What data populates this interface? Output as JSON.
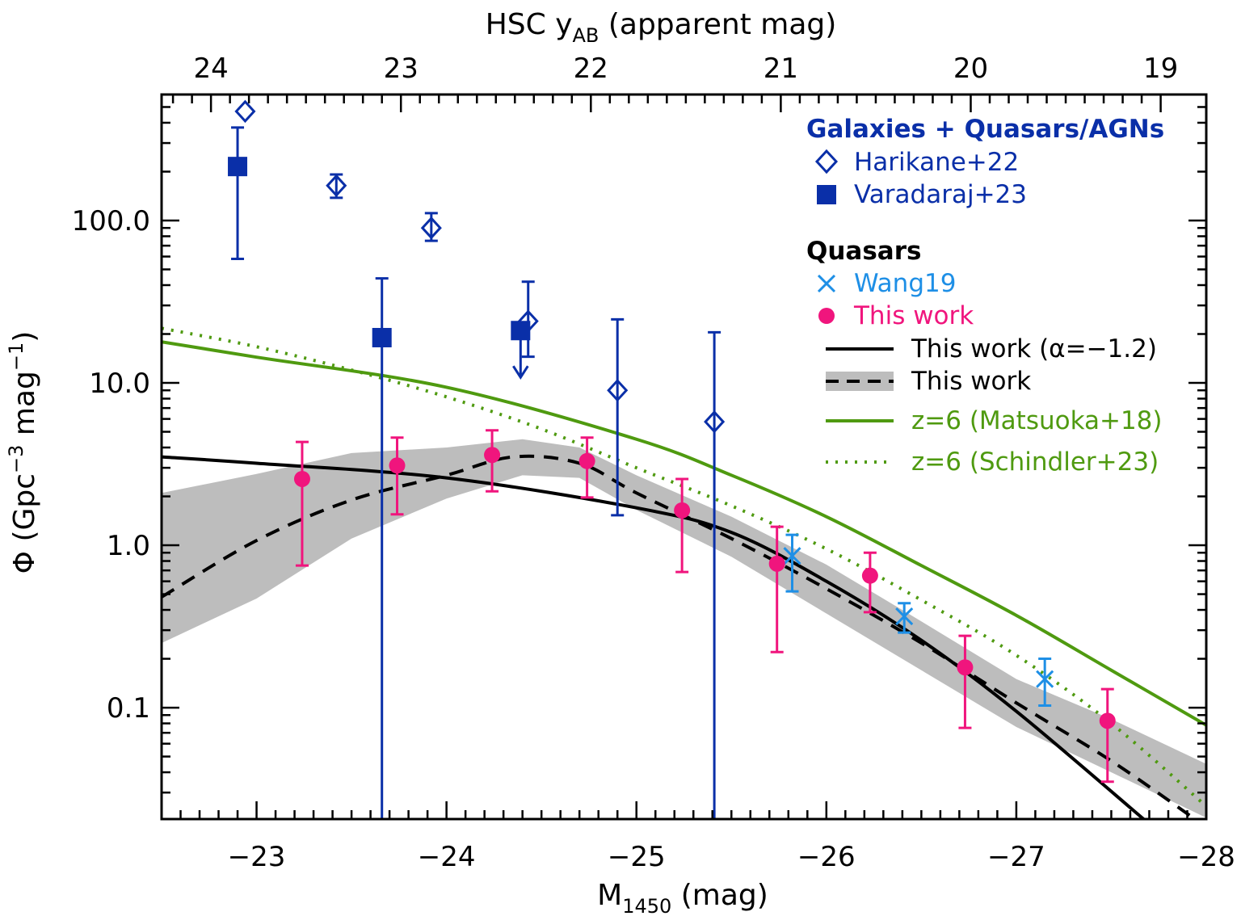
{
  "chart_data": {
    "type": "scatter",
    "xlabel": {
      "main": "M",
      "sub": "1450",
      "rest": " (mag)"
    },
    "ylabel": {
      "main": "Φ (Gpc",
      "sup1": "−3",
      "mid": " mag",
      "sup2": "−1",
      "end": ")"
    },
    "top_xlabel": {
      "main": "HSC y",
      "sub": "AB",
      "rest": " (apparent mag)"
    },
    "xlim": [
      -22.5,
      -28
    ],
    "ylim": [
      0.0206,
      597
    ],
    "yscale": "log",
    "top_axis_offset": 46.76,
    "x_ticks": [
      "−23",
      "−24",
      "−25",
      "−26",
      "−27",
      "−28"
    ],
    "x_tick_values": [
      -23,
      -24,
      -25,
      -26,
      -27,
      -28
    ],
    "top_ticks": [
      "24",
      "23",
      "22",
      "21",
      "20",
      "19"
    ],
    "top_tick_values": [
      24,
      23,
      22,
      21,
      20,
      19
    ],
    "y_ticks": [
      "0.1",
      "1.0",
      "10.0",
      "100.0"
    ],
    "y_tick_values": [
      0.1,
      1,
      10,
      100
    ],
    "legend": {
      "placement": "top-right",
      "group1": "Galaxies + Quasars/AGNs",
      "group2": "Quasars",
      "harikane": "Harikane+22",
      "varadaraj": "Varadaraj+23",
      "wang": "Wang19",
      "thiswork": "This work",
      "fit_alpha": "This work (α=−1.2)",
      "fit_dpl": "This work",
      "matsuoka": "z=6 (Matsuoka+18)",
      "schindler": "z=6 (Schindler+23)"
    },
    "colors": {
      "galaxies": "#0a2fa8",
      "wang": "#1e8fe6",
      "thiswork": "#f0157d",
      "fit": "#000000",
      "band": "#bdbdbd",
      "z6": "#4f9a10",
      "group2": "#000000"
    },
    "series": [
      {
        "name": "Harikane+22",
        "marker": "open-diamond",
        "points": [
          {
            "x": -22.94,
            "y": 470
          },
          {
            "x": -23.42,
            "y": 164,
            "hi": 192,
            "lo": 138
          },
          {
            "x": -23.92,
            "y": 90,
            "hi": 111,
            "lo": 75
          },
          {
            "x": -24.43,
            "y": 24,
            "hi": 42,
            "lo": 14.5
          },
          {
            "x": -24.9,
            "y": 9.0,
            "hi": 24.6,
            "lo": 1.53
          },
          {
            "x": -25.41,
            "y": 5.76,
            "hi": 20.5,
            "lo": 0.001
          }
        ]
      },
      {
        "name": "Varadaraj+23",
        "marker": "filled-square",
        "points": [
          {
            "x": -22.9,
            "y": 215,
            "hi": 374,
            "lo": 58
          },
          {
            "x": -23.66,
            "y": 19,
            "hi": 44,
            "lo": 0.001
          },
          {
            "x": -24.39,
            "y": 21,
            "upper_limit": true
          }
        ]
      },
      {
        "name": "Wang19",
        "marker": "x",
        "points": [
          {
            "x": -25.82,
            "y": 0.86,
            "hi": 1.16,
            "lo": 0.52
          },
          {
            "x": -26.41,
            "y": 0.365,
            "hi": 0.44,
            "lo": 0.29
          },
          {
            "x": -27.15,
            "y": 0.15,
            "hi": 0.2,
            "lo": 0.103
          }
        ]
      },
      {
        "name": "This work",
        "marker": "filled-circle",
        "points": [
          {
            "x": -23.24,
            "y": 2.56,
            "hi": 4.33,
            "lo": 0.75
          },
          {
            "x": -23.74,
            "y": 3.1,
            "hi": 4.6,
            "lo": 1.55
          },
          {
            "x": -24.24,
            "y": 3.6,
            "hi": 5.1,
            "lo": 2.15
          },
          {
            "x": -24.74,
            "y": 3.3,
            "hi": 4.6,
            "lo": 1.97
          },
          {
            "x": -25.24,
            "y": 1.64,
            "hi": 2.56,
            "lo": 0.685
          },
          {
            "x": -25.74,
            "y": 0.77,
            "hi": 1.3,
            "lo": 0.22
          },
          {
            "x": -26.23,
            "y": 0.65,
            "hi": 0.9,
            "lo": 0.387
          },
          {
            "x": -26.73,
            "y": 0.177,
            "hi": 0.277,
            "lo": 0.075
          },
          {
            "x": -27.48,
            "y": 0.083,
            "hi": 0.13,
            "lo": 0.035
          }
        ]
      }
    ],
    "curves": [
      {
        "name": "This work (α=−1.2)",
        "style": "solid",
        "color": "#000000",
        "x": [
          -22.5,
          -23,
          -24,
          -25,
          -25.5,
          -26,
          -26.5,
          -27,
          -27.67
        ],
        "y": [
          3.5,
          3.2,
          2.6,
          1.7,
          1.2,
          0.6,
          0.26,
          0.095,
          0.0206
        ]
      },
      {
        "name": "This work",
        "style": "dashed",
        "color": "#000000",
        "x": [
          -22.5,
          -23,
          -23.5,
          -24,
          -24.35,
          -24.7,
          -25,
          -25.5,
          -26,
          -26.5,
          -27,
          -27.5,
          -27.93
        ],
        "y": [
          0.48,
          1.07,
          1.9,
          2.7,
          3.5,
          3.2,
          2.1,
          1.1,
          0.54,
          0.25,
          0.107,
          0.047,
          0.021
        ]
      },
      {
        "name": "z=6 (Matsuoka+18)",
        "style": "solid",
        "color": "#4f9a10",
        "x": [
          -22.5,
          -23,
          -24,
          -25,
          -25.5,
          -26,
          -26.5,
          -27,
          -27.5,
          -28
        ],
        "y": [
          17.9,
          14.4,
          9.4,
          4.5,
          2.7,
          1.5,
          0.75,
          0.37,
          0.17,
          0.078
        ]
      },
      {
        "name": "z=6 (Schindler+23)",
        "style": "dotted",
        "color": "#4f9a10",
        "x": [
          -22.5,
          -23,
          -23.5,
          -24,
          -24.5,
          -25,
          -25.5,
          -26,
          -26.5,
          -27,
          -27.5,
          -28
        ],
        "y": [
          21.7,
          16.7,
          12,
          8.2,
          5.2,
          3.0,
          1.75,
          0.95,
          0.46,
          0.21,
          0.08,
          0.0247
        ]
      }
    ],
    "band": {
      "x": [
        -22.5,
        -23,
        -23.5,
        -24,
        -24.4,
        -24.7,
        -25,
        -25.5,
        -26,
        -26.5,
        -27,
        -27.5,
        -28
      ],
      "upper": [
        2.1,
        2.75,
        3.7,
        4.0,
        4.5,
        4.0,
        2.7,
        1.5,
        0.76,
        0.34,
        0.15,
        0.085,
        0.045
      ],
      "lower": [
        0.25,
        0.47,
        1.1,
        1.94,
        2.7,
        2.6,
        1.65,
        0.85,
        0.38,
        0.17,
        0.076,
        0.04,
        0.021
      ]
    }
  }
}
